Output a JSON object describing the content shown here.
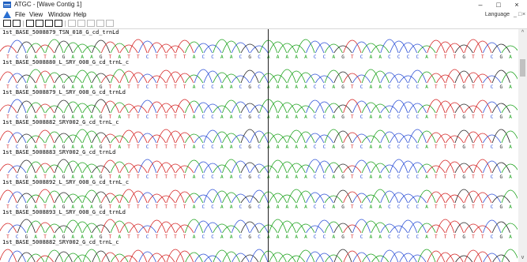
{
  "window": {
    "title": "ATGC - [Wave Contig 1]",
    "controls": [
      "–",
      "□",
      "×"
    ],
    "mdi_controls": [
      "_",
      "□",
      "×"
    ]
  },
  "menu": {
    "items": [
      "File",
      "View",
      "Window",
      "Help"
    ],
    "language_label": "Language"
  },
  "toolbar": {
    "icons": [
      "save-icon",
      "print-icon",
      "zoom-wave-icon",
      "zoom-seq-icon",
      "io-icon",
      "grid-icon",
      "find-icon",
      "prev-icon",
      "next-icon",
      "last-icon",
      "mark-icon"
    ]
  },
  "colors": {
    "A": "#1aa11a",
    "C": "#2b4fd6",
    "G": "#222222",
    "T": "#d42020"
  },
  "sequence": "TCGATAGAAAGTATTCTTTTACCAACGCAAAAACCAGTCAACCCCATTTGTTCGA",
  "tracks": [
    {
      "name": "1st_BASE_5008879_TSN_018_G_cd_trnLd"
    },
    {
      "name": "1st_BASE_5008880_L_SRY_008_G_cd_trnL_c"
    },
    {
      "name": "1st_BASE_5008879_L_SRY_008_G_cd_trnLd"
    },
    {
      "name": "1st_BASE_5008882_SRY002_G_cd_trnL_c"
    },
    {
      "name": "1st_BASE_5008883_SRY002_G_cd_trnLd"
    },
    {
      "name": "1st_BASE_5008892_L_SRY_008_G_cd_trnL_c"
    },
    {
      "name": "1st_BASE_5008893_L_SRY_008_G_cd_trnLd"
    },
    {
      "name": "1st_BASE_5008882_SRY002_G_cd_trnL_c"
    }
  ],
  "scrollbar": {
    "up": "^",
    "down": "v"
  }
}
